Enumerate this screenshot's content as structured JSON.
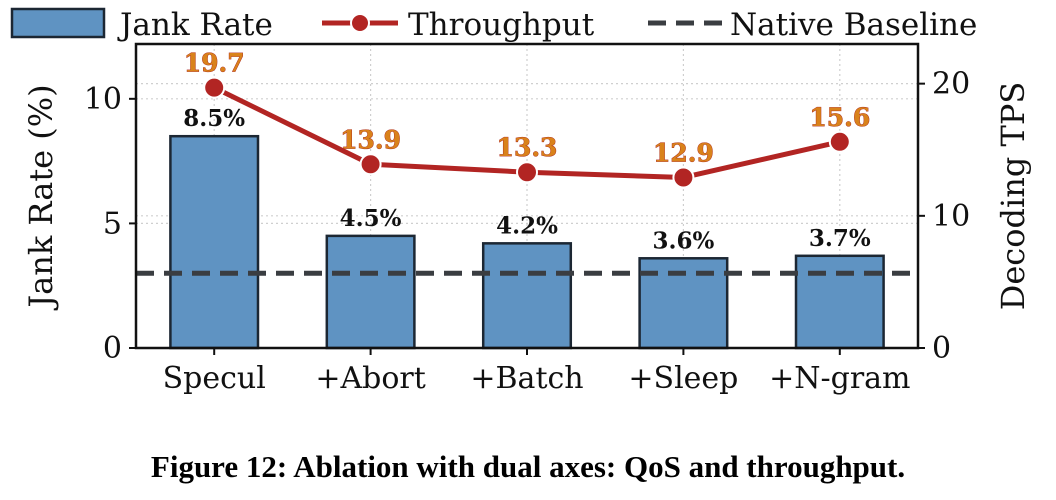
{
  "caption": "Figure 12: Ablation with dual axes: QoS and throughput.",
  "colors": {
    "bar_fill": "#5f93c2",
    "bar_edge": "#1c2733",
    "line": "#b22523",
    "line_label_fill": "#d9821b",
    "baseline": "#3a3d41",
    "grid": "#cfcfcf"
  },
  "chart_data": {
    "type": "bar",
    "categories": [
      "Specul",
      "+Abort",
      "+Batch",
      "+Sleep",
      "+N-gram"
    ],
    "series": [
      {
        "name": "Jank Rate",
        "type": "bar",
        "axis": "left",
        "values": [
          8.5,
          4.5,
          4.2,
          3.6,
          3.7
        ],
        "labels": [
          "8.5%",
          "4.5%",
          "4.2%",
          "3.6%",
          "3.7%"
        ]
      },
      {
        "name": "Throughput",
        "type": "line",
        "axis": "right",
        "values": [
          19.7,
          13.9,
          13.3,
          12.9,
          15.6
        ],
        "labels": [
          "19.7",
          "13.9",
          "13.3",
          "12.9",
          "15.6"
        ]
      }
    ],
    "baseline": {
      "name": "Native Baseline",
      "axis": "left",
      "value": 3.0
    },
    "ylabel_left": "Jank Rate (%)",
    "ylabel_right": "Decoding TPS",
    "ylim_left": [
      0,
      12.2
    ],
    "ylim_right": [
      0,
      23
    ],
    "yticks_left": [
      0,
      5,
      10
    ],
    "yticks_right": [
      0,
      10,
      20
    ],
    "grid": true,
    "legend_position": "top"
  }
}
